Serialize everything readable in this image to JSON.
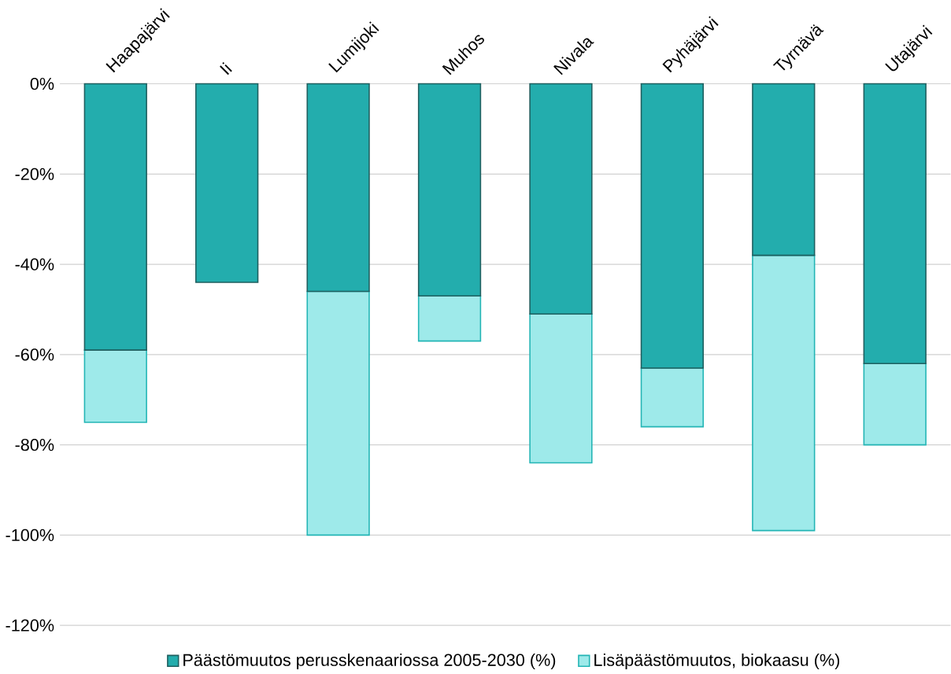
{
  "chart_data": {
    "type": "bar",
    "stacked": true,
    "grid": "y",
    "legend": "bottom",
    "categories": [
      "Haapajärvi",
      "Ii",
      "Lumijoki",
      "Muhos",
      "Nivala",
      "Pyhäjärvi",
      "Tyrnävä",
      "Utajärvi"
    ],
    "series": [
      {
        "name": "Päästömuutos perusskenaariossa 2005-2030 (%)",
        "color": "#23adad",
        "values": [
          -59,
          -44,
          -46,
          -47,
          -51,
          -63,
          -38,
          -62
        ]
      },
      {
        "name": "Lisäpäästömuutos, biokaasu (%)",
        "color": "#9eeaea",
        "values": [
          -16,
          null,
          -54,
          -10,
          -33,
          -13,
          -61,
          -18
        ]
      }
    ],
    "ylim": [
      -120,
      0
    ],
    "yticks": [
      {
        "value": -120,
        "label": "-120%"
      },
      {
        "value": -100,
        "label": "-100%"
      },
      {
        "value": -80,
        "label": "-80%"
      },
      {
        "value": -60,
        "label": "-60%"
      },
      {
        "value": -40,
        "label": "-40%"
      },
      {
        "value": -20,
        "label": "-20%"
      },
      {
        "value": 0,
        "label": "0%"
      }
    ]
  }
}
